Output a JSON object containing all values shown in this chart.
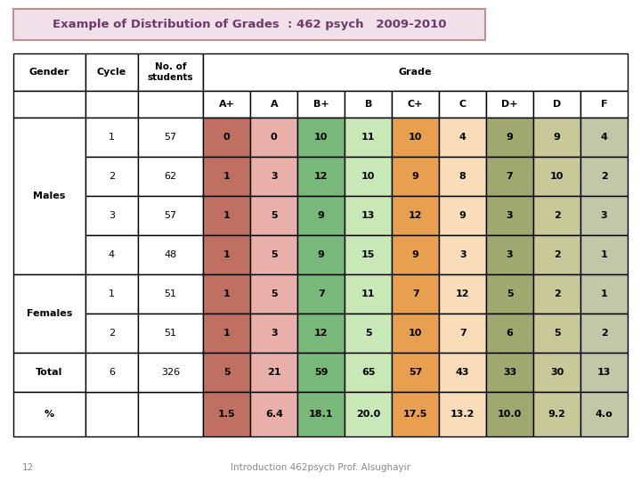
{
  "title": "Example of Distribution of Grades  : 462 psych   2009-2010",
  "title_bg": "#f2e0e8",
  "title_border": "#c09090",
  "footer": "Introduction 462psych Prof. Alsughayir",
  "page_num": "12",
  "rows": [
    {
      "gender": "Males",
      "cycle": "1",
      "students": "57",
      "vals": [
        "0",
        "0",
        "10",
        "11",
        "10",
        "4",
        "9",
        "9",
        "4"
      ]
    },
    {
      "gender": "",
      "cycle": "2",
      "students": "62",
      "vals": [
        "1",
        "3",
        "12",
        "10",
        "9",
        "8",
        "7",
        "10",
        "2"
      ]
    },
    {
      "gender": "",
      "cycle": "3",
      "students": "57",
      "vals": [
        "1",
        "5",
        "9",
        "13",
        "12",
        "9",
        "3",
        "2",
        "3"
      ]
    },
    {
      "gender": "",
      "cycle": "4",
      "students": "48",
      "vals": [
        "1",
        "5",
        "9",
        "15",
        "9",
        "3",
        "3",
        "2",
        "1"
      ]
    },
    {
      "gender": "Females",
      "cycle": "1",
      "students": "51",
      "vals": [
        "1",
        "5",
        "7",
        "11",
        "7",
        "12",
        "5",
        "2",
        "1"
      ]
    },
    {
      "gender": "",
      "cycle": "2",
      "students": "51",
      "vals": [
        "1",
        "3",
        "12",
        "5",
        "10",
        "7",
        "6",
        "5",
        "2"
      ]
    },
    {
      "gender": "Total",
      "cycle": "6",
      "students": "326",
      "vals": [
        "5",
        "21",
        "59",
        "65",
        "57",
        "43",
        "33",
        "30",
        "13"
      ]
    },
    {
      "gender": "%",
      "cycle": "",
      "students": "",
      "vals": [
        "1.5",
        "6.4",
        "18.1",
        "20.0",
        "17.5",
        "13.2",
        "10.0",
        "9.2",
        "4.o"
      ]
    }
  ],
  "grade_labels": [
    "A+",
    "A",
    "B+",
    "B",
    "C+",
    "C",
    "D+",
    "D",
    "F"
  ],
  "col_colors": [
    "#c07060",
    "#e8b0a8",
    "#78b878",
    "#c8e8b8",
    "#e8a050",
    "#f8ddb8",
    "#a0a870",
    "#c8c898",
    "#c0c8a8"
  ],
  "white": "#ffffff",
  "border_color": "#000000",
  "title_color": "#6b3a6b",
  "text_color": "#000000",
  "bold_color": "#000000",
  "bg_color": "#ffffff",
  "footer_color": "#888888"
}
